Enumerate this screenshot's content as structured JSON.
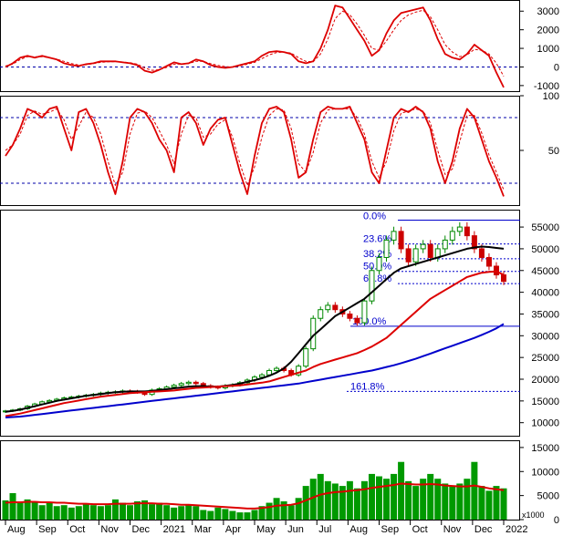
{
  "chart_data": [
    {
      "panel": "macd",
      "type": "line",
      "x_start": "2020-08",
      "x_end": "2022-01",
      "ylim": [
        -1300,
        3600
      ],
      "yticks": [
        3000,
        2000,
        1000,
        0,
        -1000
      ],
      "reference_lines": [
        0
      ],
      "series": [
        {
          "style": "solid",
          "color": "#dd0000",
          "values": [
            0,
            200,
            500,
            600,
            500,
            600,
            500,
            400,
            200,
            100,
            50,
            150,
            200,
            300,
            300,
            300,
            250,
            200,
            100,
            -200,
            -300,
            -150,
            50,
            250,
            150,
            200,
            400,
            300,
            100,
            0,
            -50,
            0,
            100,
            200,
            300,
            600,
            800,
            850,
            800,
            700,
            300,
            200,
            300,
            1000,
            2000,
            3300,
            3200,
            2600,
            2000,
            1400,
            600,
            900,
            1800,
            2500,
            2900,
            3000,
            3100,
            3200,
            2500,
            1500,
            700,
            500,
            400,
            700,
            1200,
            900,
            600,
            -300,
            -1100
          ]
        },
        {
          "style": "dashed",
          "color": "#dd0000",
          "values": [
            50,
            150,
            400,
            550,
            550,
            550,
            500,
            420,
            300,
            180,
            100,
            120,
            180,
            250,
            280,
            290,
            270,
            230,
            150,
            -50,
            -180,
            -150,
            -20,
            150,
            150,
            180,
            300,
            300,
            180,
            80,
            20,
            0,
            50,
            150,
            250,
            450,
            650,
            780,
            800,
            750,
            500,
            300,
            280,
            700,
            1500,
            2600,
            3000,
            2800,
            2300,
            1700,
            1000,
            900,
            1400,
            2000,
            2500,
            2800,
            2950,
            3050,
            2700,
            2000,
            1200,
            800,
            550,
            650,
            950,
            900,
            700,
            200,
            -500
          ]
        }
      ]
    },
    {
      "panel": "stochastic",
      "type": "line",
      "x_start": "2020-08",
      "x_end": "2022-01",
      "ylim": [
        0,
        100
      ],
      "yticks": [
        100,
        50
      ],
      "reference_lines": [
        80,
        20
      ],
      "series": [
        {
          "style": "solid",
          "color": "#dd0000",
          "values": [
            45,
            55,
            70,
            88,
            85,
            80,
            88,
            90,
            70,
            50,
            85,
            88,
            75,
            55,
            30,
            10,
            40,
            80,
            88,
            85,
            75,
            60,
            50,
            30,
            80,
            85,
            75,
            55,
            70,
            78,
            80,
            55,
            30,
            10,
            45,
            75,
            88,
            90,
            85,
            60,
            25,
            30,
            60,
            85,
            90,
            88,
            88,
            90,
            75,
            60,
            30,
            20,
            50,
            80,
            88,
            85,
            90,
            85,
            70,
            40,
            20,
            40,
            70,
            88,
            80,
            60,
            40,
            25,
            8
          ]
        },
        {
          "style": "dashed",
          "color": "#dd0000",
          "values": [
            50,
            55,
            65,
            82,
            86,
            83,
            85,
            88,
            78,
            60,
            72,
            85,
            80,
            65,
            40,
            18,
            30,
            65,
            84,
            86,
            80,
            68,
            55,
            38,
            65,
            82,
            80,
            62,
            65,
            74,
            78,
            62,
            38,
            18,
            35,
            62,
            82,
            88,
            87,
            70,
            38,
            30,
            48,
            75,
            87,
            88,
            88,
            88,
            80,
            65,
            40,
            25,
            40,
            68,
            84,
            86,
            88,
            86,
            75,
            50,
            28,
            33,
            58,
            82,
            82,
            66,
            46,
            30,
            14
          ]
        }
      ]
    },
    {
      "panel": "price",
      "type": "candlestick",
      "x_start": "2020-08",
      "x_end": "2022-01",
      "ylim": [
        7000,
        59000
      ],
      "yticks": [
        55000,
        50000,
        45000,
        40000,
        35000,
        30000,
        25000,
        20000,
        15000,
        10000
      ],
      "close": [
        12700,
        12900,
        13200,
        13800,
        14300,
        14800,
        15100,
        15400,
        15700,
        15900,
        16100,
        16300,
        16500,
        16800,
        17000,
        17100,
        17300,
        17200,
        17000,
        16500,
        17500,
        17800,
        18200,
        18600,
        19000,
        19300,
        19000,
        18500,
        18200,
        18000,
        18500,
        18700,
        19200,
        19800,
        20500,
        21000,
        22000,
        22500,
        22000,
        21000,
        23000,
        27000,
        34000,
        36000,
        37000,
        36000,
        35000,
        34000,
        33000,
        38000,
        45000,
        48000,
        52000,
        54000,
        50000,
        47000,
        50000,
        51000,
        48000,
        50000,
        52000,
        54000,
        55000,
        53000,
        50000,
        48000,
        46000,
        44000,
        42500
      ],
      "series": [
        {
          "name": "",
          "type": "line",
          "color": "#000000",
          "values": [
            12500,
            12700,
            13000,
            13400,
            13800,
            14200,
            14600,
            15000,
            15300,
            15600,
            15900,
            16200,
            16400,
            16600,
            16800,
            17000,
            17100,
            17200,
            17200,
            17200,
            17300,
            17500,
            17700,
            17900,
            18100,
            18300,
            18400,
            18400,
            18300,
            18300,
            18500,
            18700,
            19000,
            19400,
            19800,
            20200,
            20800,
            21500,
            22500,
            24000,
            26000,
            28000,
            30000,
            31500,
            33000,
            34500,
            35500,
            36500,
            37500,
            38500,
            40000,
            41500,
            43000,
            44500,
            45500,
            46000,
            46500,
            47000,
            47500,
            48000,
            48500,
            49000,
            49500,
            50000,
            50300,
            50500,
            50400,
            50200,
            50000
          ]
        },
        {
          "name": "",
          "type": "line",
          "color": "#dd0000",
          "values": [
            11500,
            11800,
            12100,
            12500,
            12900,
            13300,
            13700,
            14100,
            14500,
            14800,
            15100,
            15400,
            15700,
            16000,
            16200,
            16400,
            16600,
            16800,
            16900,
            17000,
            17100,
            17200,
            17300,
            17400,
            17600,
            17800,
            18000,
            18100,
            18200,
            18300,
            18400,
            18500,
            18600,
            18800,
            19000,
            19200,
            19500,
            20000,
            20500,
            21000,
            21500,
            22000,
            22800,
            23500,
            24000,
            24500,
            25000,
            25500,
            26000,
            26700,
            27500,
            28500,
            29500,
            31000,
            32500,
            34000,
            35500,
            37000,
            38500,
            39500,
            40500,
            41500,
            42500,
            43500,
            44000,
            44500,
            44700,
            44800,
            44000
          ]
        },
        {
          "name": "",
          "type": "line",
          "color": "#0000cc",
          "values": [
            11200,
            11300,
            11400,
            11600,
            11800,
            12000,
            12200,
            12400,
            12600,
            12800,
            13000,
            13200,
            13400,
            13600,
            13800,
            14000,
            14200,
            14400,
            14600,
            14800,
            15000,
            15200,
            15400,
            15600,
            15800,
            16000,
            16200,
            16400,
            16600,
            16800,
            17000,
            17200,
            17400,
            17600,
            17800,
            18000,
            18200,
            18400,
            18600,
            18800,
            19000,
            19300,
            19600,
            19900,
            20200,
            20500,
            20800,
            21100,
            21400,
            21700,
            22000,
            22400,
            22800,
            23200,
            23700,
            24200,
            24700,
            25300,
            25900,
            26500,
            27100,
            27700,
            28300,
            28900,
            29500,
            30200,
            30900,
            31700,
            32700
          ]
        }
      ],
      "fibonacci": [
        {
          "label": "0.0%",
          "value": 56600
        },
        {
          "label": "23.6%",
          "value": 51100
        },
        {
          "label": "38.2%",
          "value": 47700
        },
        {
          "label": "50.0%",
          "value": 44800
        },
        {
          "label": "61.8%",
          "value": 42000
        },
        {
          "label": "100.0%",
          "value": 32200
        },
        {
          "label": "161.8%",
          "value": 17200
        }
      ]
    },
    {
      "panel": "volume",
      "type": "bar",
      "x_start": "2020-08",
      "x_end": "2022-01",
      "ylim": [
        0,
        16500
      ],
      "yticks": [
        15000,
        10000,
        5000,
        0
      ],
      "unit_label": "x1000",
      "x_tick_labels": [
        "Aug",
        "Sep",
        "Oct",
        "Nov",
        "Dec",
        "2021",
        "Mar",
        "Apr",
        "May",
        "Jun",
        "Jul",
        "Aug",
        "Sep",
        "Oct",
        "Nov",
        "Dec",
        "2022"
      ],
      "values": [
        4000,
        5500,
        3500,
        4200,
        3800,
        3000,
        3500,
        2800,
        3000,
        2500,
        2800,
        3200,
        3000,
        2800,
        3000,
        4200,
        3500,
        3000,
        3800,
        4000,
        3200,
        3500,
        3000,
        2500,
        2800,
        3000,
        2800,
        2000,
        1800,
        2500,
        2200,
        1800,
        1500,
        1500,
        2000,
        2800,
        3500,
        4500,
        3800,
        3000,
        4500,
        7000,
        8500,
        9500,
        8000,
        7500,
        7000,
        8000,
        6500,
        8000,
        9500,
        9000,
        8500,
        9500,
        12000,
        8000,
        7000,
        8500,
        9500,
        8500,
        7500,
        7000,
        7500,
        8500,
        12000,
        7000,
        6000,
        7000,
        6500
      ],
      "average": [
        3500,
        3600,
        3600,
        3700,
        3700,
        3600,
        3600,
        3500,
        3500,
        3400,
        3300,
        3300,
        3200,
        3200,
        3200,
        3300,
        3300,
        3300,
        3400,
        3400,
        3400,
        3300,
        3300,
        3200,
        3100,
        3100,
        3000,
        2900,
        2800,
        2700,
        2600,
        2500,
        2400,
        2300,
        2300,
        2400,
        2600,
        2900,
        3000,
        3100,
        3400,
        4000,
        4600,
        5200,
        5500,
        5700,
        5800,
        6000,
        6100,
        6300,
        6600,
        6800,
        7000,
        7200,
        7500,
        7400,
        7300,
        7300,
        7400,
        7300,
        7100,
        7000,
        6900,
        6900,
        7100,
        6800,
        6500,
        6300,
        6100
      ]
    }
  ]
}
